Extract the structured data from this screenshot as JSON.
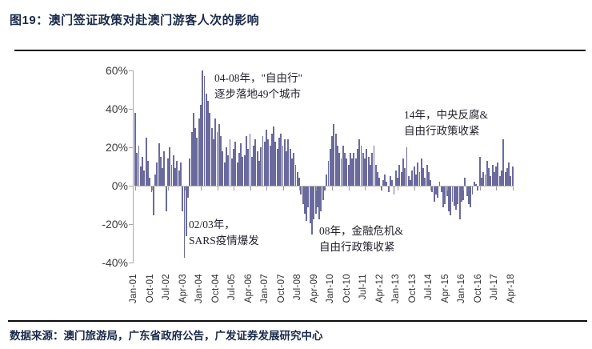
{
  "figure": {
    "title": "图19：澳门签证政策对赴澳门游客人次的影响",
    "source": "数据来源：澳门旅游局，广东省政府公告，广发证券发展研究中心"
  },
  "colors": {
    "bar": "#6A6A9D",
    "title_text": "#1A2A4A",
    "axis_line": "#ABABAB",
    "axis_text": "#3B3B3B",
    "divider": "#0D0D0D"
  },
  "annotations": [
    {
      "id": "free-travel",
      "lines": [
        "04-08年，\"自由行\"",
        "逐步落地49个城市"
      ]
    },
    {
      "id": "anti-corruption",
      "lines": [
        "14年，中央反腐&",
        "自由行政策收紧"
      ]
    },
    {
      "id": "sars",
      "lines": [
        "02/03年，",
        "SARS疫情爆发"
      ]
    },
    {
      "id": "financial-crisis",
      "lines": [
        "08年，金融危机&",
        "自由行政策收紧"
      ]
    }
  ],
  "chart_data": {
    "type": "bar",
    "title": "澳门签证政策对赴澳门游客人次的影响",
    "xlabel": "",
    "ylabel": "",
    "unit": "% YoY (monthly)",
    "ylim": [
      -40,
      60
    ],
    "grid": false,
    "legend": "none",
    "y_tick_labels": [
      "60%",
      "40%",
      "20%",
      "0%",
      "-20%",
      "-40%"
    ],
    "x_tick_labels": [
      "Jan-01",
      "Oct-01",
      "Jul-02",
      "Apr-03",
      "Jan-04",
      "Oct-04",
      "Jul-05",
      "Apr-06",
      "Jan-07",
      "Oct-07",
      "Jul-08",
      "Apr-09",
      "Jan-10",
      "Oct-10",
      "Jul-11",
      "Apr-12",
      "Jan-13",
      "Oct-13",
      "Jul-14",
      "Apr-15",
      "Jan-16",
      "Oct-16",
      "Jul-17",
      "Apr-18"
    ],
    "x_start": "Jan-01",
    "x_end": "Apr-18",
    "frequency": "monthly",
    "values": [
      38,
      17,
      21,
      10,
      15,
      8,
      25,
      13,
      4,
      -3,
      -15,
      6,
      12,
      22,
      15,
      9,
      18,
      -13,
      14,
      20,
      11,
      16,
      9,
      13,
      8,
      12,
      -13,
      -37,
      -26,
      -6,
      14,
      28,
      38,
      30,
      25,
      35,
      42,
      60,
      57,
      48,
      44,
      38,
      30,
      24,
      35,
      28,
      32,
      26,
      18,
      12,
      20,
      16,
      24,
      14,
      19,
      23,
      12,
      17,
      22,
      15,
      16,
      26,
      19,
      27,
      15,
      21,
      24,
      18,
      13,
      20,
      26,
      23,
      29,
      24,
      21,
      27,
      31,
      23,
      19,
      25,
      27,
      21,
      24,
      18,
      24,
      19,
      14,
      17,
      11,
      7,
      4,
      -4,
      -9,
      -14,
      -18,
      -11,
      -19,
      -25,
      -17,
      -14,
      -11,
      -17,
      -13,
      -7,
      -2,
      6,
      13,
      19,
      26,
      32,
      27,
      21,
      17,
      14,
      21,
      17,
      14,
      11,
      17,
      14,
      17,
      14,
      19,
      24,
      21,
      17,
      14,
      19,
      15,
      11,
      17,
      21,
      11,
      7,
      4,
      -2,
      3,
      6,
      2,
      -3,
      5,
      3,
      -4,
      8,
      4,
      11,
      7,
      14,
      9,
      20,
      5,
      3,
      8,
      10,
      6,
      12,
      7,
      14,
      9,
      4,
      11,
      7,
      3,
      -3,
      -8,
      -4,
      -6,
      2,
      -3,
      -11,
      -9,
      -5,
      -13,
      -15,
      -8,
      -10,
      -12,
      -9,
      -17,
      -8,
      -7,
      4,
      -5,
      -9,
      -11,
      -4,
      2,
      1,
      -2,
      15,
      4,
      7,
      6,
      13,
      9,
      5,
      11,
      7,
      10,
      12,
      5,
      8,
      24,
      7,
      9,
      12,
      5,
      10
    ]
  }
}
